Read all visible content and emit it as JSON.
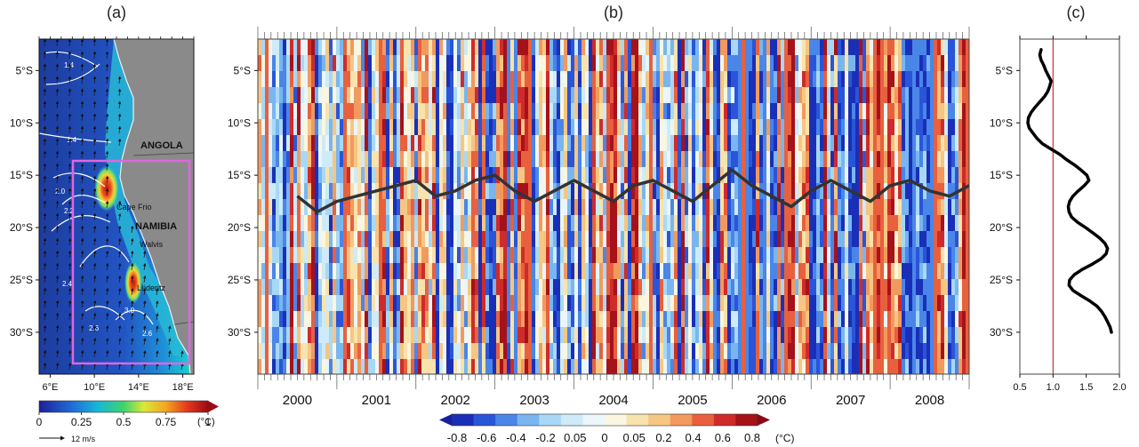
{
  "panel_labels": [
    "(a)",
    "(b)",
    "(c)"
  ],
  "colors": {
    "ocean_low": "#1f3ea8",
    "land": "#888888",
    "box": "#e066e0",
    "front_line": "#333333",
    "reference_line": "#c8352a"
  },
  "chart_data": [
    {
      "id": "a",
      "type": "heatmap",
      "title": "",
      "xlabel": "",
      "ylabel": "",
      "x_ticks": [
        "6°E",
        "10°E",
        "14°E",
        "18°E"
      ],
      "y_ticks": [
        "5°S",
        "10°S",
        "15°S",
        "20°S",
        "25°S",
        "30°S"
      ],
      "xlim": [
        5,
        19
      ],
      "ylim": [
        -34,
        -2
      ],
      "place_labels": [
        "ANGOLA",
        "NAMIBIA",
        "Cape Frio",
        "Walvis",
        "Lüderitz"
      ],
      "contour_labels": [
        "1.4",
        "1.4",
        "2.0",
        "2.2",
        "2.4",
        "2.6",
        "3.0",
        "2.6"
      ],
      "colorbar_ticks": [
        "0",
        "0.25",
        "0.5",
        "0.75",
        "1"
      ],
      "colorbar_unit": "(°C)",
      "vector_key": "12 m/s",
      "region_box": {
        "lon": [
          8.5,
          18.5
        ],
        "lat": [
          -33,
          -14
        ]
      }
    },
    {
      "id": "b",
      "type": "heatmap",
      "title": "",
      "xlabel": "",
      "ylabel": "",
      "years": [
        "2000",
        "2001",
        "2002",
        "2003",
        "2004",
        "2005",
        "2006",
        "2007",
        "2008"
      ],
      "y_ticks": [
        "5°S",
        "10°S",
        "15°S",
        "20°S",
        "25°S",
        "30°S"
      ],
      "ylim": [
        -34,
        -2
      ],
      "colorbar_ticks": [
        "-0.8",
        "-0.6",
        "-0.4",
        "-0.2",
        "0.05",
        "0",
        "0.05",
        "0.2",
        "0.4",
        "0.6",
        "0.8"
      ],
      "colorbar_unit": "(°C)",
      "front_latitude": {
        "t": [
          2000.0,
          2000.25,
          2000.5,
          2000.75,
          2001.0,
          2001.25,
          2001.5,
          2001.75,
          2002.0,
          2002.25,
          2002.5,
          2002.75,
          2003.0,
          2003.25,
          2003.5,
          2003.75,
          2004.0,
          2004.25,
          2004.5,
          2004.75,
          2005.0,
          2005.25,
          2005.5,
          2005.75,
          2006.0,
          2006.25,
          2006.5,
          2006.75,
          2007.0,
          2007.25,
          2007.5,
          2007.75,
          2008.0,
          2008.25,
          2008.5,
          2008.75
        ],
        "lat": [
          -17.0,
          -18.5,
          -17.5,
          -17.0,
          -16.5,
          -16.0,
          -15.5,
          -17.0,
          -16.5,
          -15.5,
          -15.0,
          -16.5,
          -17.5,
          -16.5,
          -15.5,
          -16.5,
          -17.5,
          -16.0,
          -15.5,
          -16.5,
          -17.5,
          -16.0,
          -14.5,
          -16.0,
          -17.0,
          -18.0,
          -16.5,
          -15.5,
          -16.5,
          -17.5,
          -16.0,
          -15.5,
          -16.5,
          -17.0,
          -16.0,
          -17.0
        ]
      }
    },
    {
      "id": "c",
      "type": "line",
      "title": "",
      "xlabel": "",
      "ylabel": "",
      "x_ticks": [
        "0.5",
        "1.0",
        "1.5",
        "2.0"
      ],
      "xlim": [
        0.5,
        2.0
      ],
      "ylim": [
        -34,
        -2
      ],
      "y_ticks": [
        "5°S",
        "10°S",
        "15°S",
        "20°S",
        "25°S",
        "30°S"
      ],
      "reference_x": 1.0,
      "x": [
        0.82,
        0.8,
        0.82,
        0.86,
        0.89,
        0.93,
        0.97,
        0.95,
        0.92,
        0.87,
        0.8,
        0.73,
        0.67,
        0.63,
        0.62,
        0.64,
        0.7,
        0.76,
        0.84,
        0.97,
        1.1,
        1.2,
        1.32,
        1.42,
        1.51,
        1.54,
        1.47,
        1.38,
        1.3,
        1.25,
        1.23,
        1.24,
        1.28,
        1.37,
        1.49,
        1.6,
        1.7,
        1.78,
        1.82,
        1.8,
        1.72,
        1.59,
        1.44,
        1.32,
        1.25,
        1.24,
        1.3,
        1.42,
        1.55,
        1.66,
        1.73,
        1.78,
        1.82,
        1.86,
        1.88
      ],
      "y": [
        -3.0,
        -3.5,
        -4.0,
        -4.5,
        -5.0,
        -5.5,
        -6.0,
        -6.5,
        -7.0,
        -7.5,
        -8.0,
        -8.5,
        -9.0,
        -9.5,
        -10.0,
        -10.5,
        -11.0,
        -11.5,
        -12.0,
        -12.5,
        -13.0,
        -13.5,
        -14.0,
        -14.5,
        -15.0,
        -15.5,
        -16.0,
        -16.5,
        -17.0,
        -17.5,
        -18.0,
        -18.5,
        -19.0,
        -19.5,
        -20.0,
        -20.5,
        -21.0,
        -21.5,
        -22.0,
        -22.5,
        -23.0,
        -23.5,
        -24.0,
        -24.5,
        -25.0,
        -25.5,
        -26.0,
        -26.5,
        -27.0,
        -27.5,
        -28.0,
        -28.5,
        -29.0,
        -29.5,
        -30.0
      ]
    }
  ]
}
